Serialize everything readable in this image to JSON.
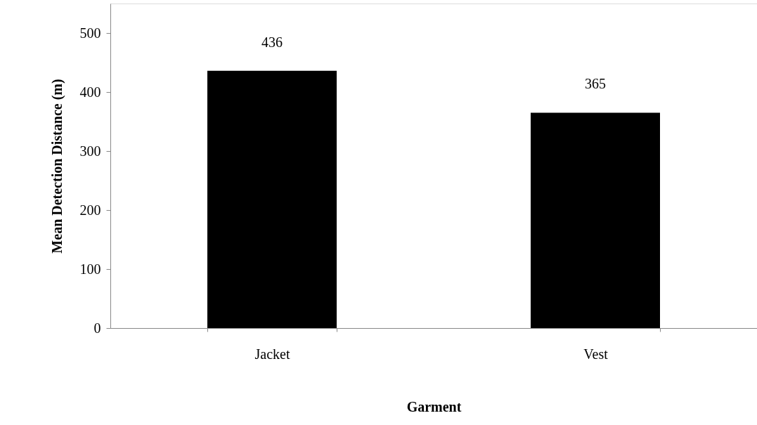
{
  "chart_data": {
    "type": "bar",
    "xlabel": "Garment",
    "ylabel": "Mean Detection Distance (m)",
    "categories": [
      "Jacket",
      "Vest"
    ],
    "values": [
      436,
      365
    ],
    "color": "#000000",
    "ylim": [
      0,
      550
    ],
    "yticks": [
      0,
      100,
      200,
      300,
      400,
      500
    ],
    "data_labels": true,
    "grid": false
  }
}
